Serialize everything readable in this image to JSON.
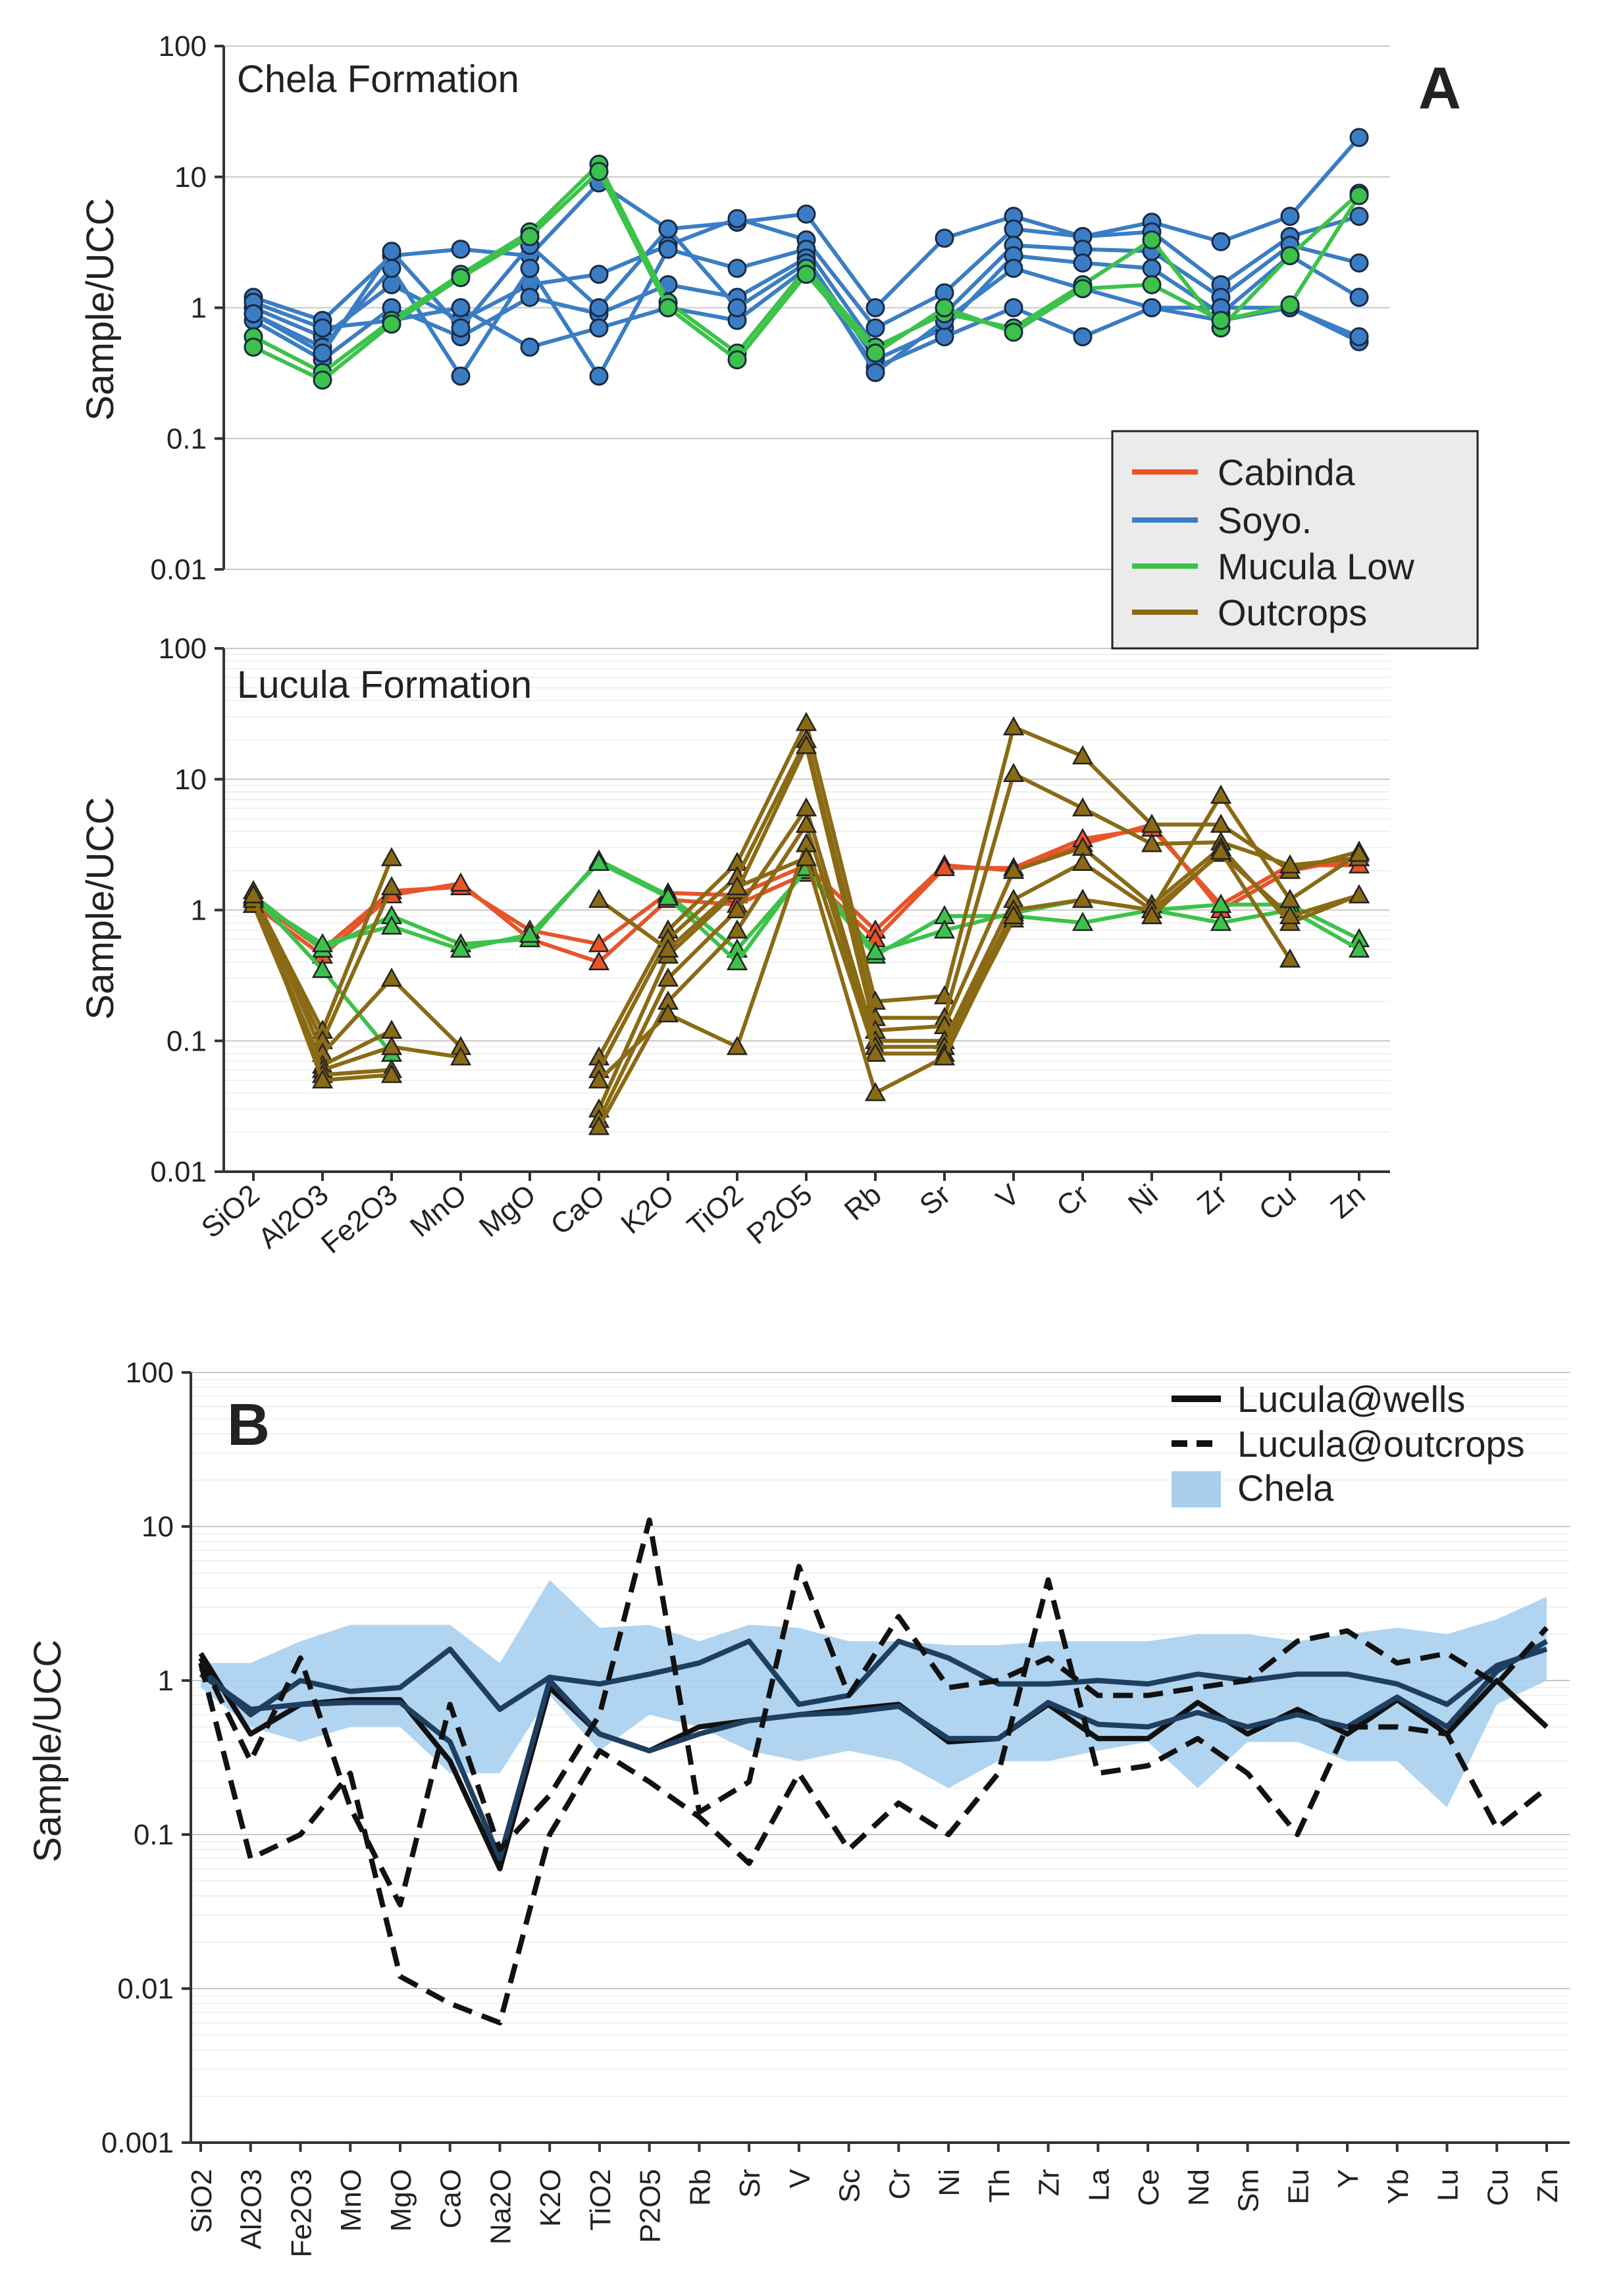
{
  "panel_a": {
    "letter": "A",
    "ylabel": "Sample/UCC",
    "ytick_labels": [
      "100",
      "10",
      "1",
      "0.1",
      "0.01"
    ],
    "categories": [
      "SiO2",
      "Al2O3",
      "Fe2O3",
      "MnO",
      "MgO",
      "CaO",
      "K2O",
      "TiO2",
      "P2O5",
      "Rb",
      "Sr",
      "V",
      "Cr",
      "Ni",
      "Zr",
      "Cu",
      "Zn"
    ],
    "legend": [
      {
        "name": "Cabinda",
        "color": "#e8542a"
      },
      {
        "name": "Soyo.",
        "color": "#3a7dc4"
      },
      {
        "name": "Mucula Low",
        "color": "#3cc24a"
      },
      {
        "name": "Outcrops",
        "color": "#8a6a14"
      }
    ]
  },
  "panel_b": {
    "letter": "B",
    "ylabel": "Sample/UCC",
    "ytick_labels": [
      "100",
      "10",
      "1",
      "0.1",
      "0.01",
      "0.001"
    ],
    "categories": [
      "SiO2",
      "Al2O3",
      "Fe2O3",
      "MnO",
      "MgO",
      "CaO",
      "Na2O",
      "K2O",
      "TiO2",
      "P2O5",
      "Rb",
      "Sr",
      "V",
      "Sc",
      "Cr",
      "Ni",
      "Th",
      "Zr",
      "La",
      "Ce",
      "Nd",
      "Sm",
      "Eu",
      "Y",
      "Yb",
      "Lu",
      "Cu",
      "Zn"
    ],
    "legend": [
      {
        "name": "Lucula@wells",
        "style": "solid"
      },
      {
        "name": "Lucula@outcrops",
        "style": "dashed"
      },
      {
        "name": "Chela",
        "style": "band"
      }
    ]
  },
  "chart_data": [
    {
      "type": "line",
      "title": "Chela Formation",
      "ylabel": "Sample/UCC",
      "yscale": "log",
      "ylim": [
        0.01,
        100
      ],
      "categories": [
        "SiO2",
        "Al2O3",
        "Fe2O3",
        "MnO",
        "MgO",
        "CaO",
        "K2O",
        "TiO2",
        "P2O5",
        "Rb",
        "Sr",
        "V",
        "Cr",
        "Ni",
        "Zr",
        "Cu",
        "Zn"
      ],
      "marker": "circle",
      "series": [
        {
          "name": "Soyo.",
          "color": "#3a7dc4",
          "values": [
            1.2,
            0.8,
            2.5,
            2.8,
            2.5,
            9,
            4,
            4.5,
            5.2,
            1.0,
            3.4,
            5,
            3.5,
            4.5,
            3.2,
            5,
            20
          ]
        },
        {
          "name": "Soyo.",
          "color": "#3a7dc4",
          "values": [
            1.0,
            0.6,
            1.5,
            0.8,
            1.5,
            1.8,
            3,
            4.8,
            3.3,
            0.7,
            1.3,
            4,
            3.5,
            3.8,
            1.5,
            3.5,
            5
          ]
        },
        {
          "name": "Soyo.",
          "color": "#3a7dc4",
          "values": [
            0.9,
            0.5,
            2.0,
            0.3,
            2.0,
            0.3,
            2.8,
            2.0,
            2.8,
            0.5,
            0.9,
            3,
            2.8,
            2.7,
            1.2,
            3.0,
            2.2
          ]
        },
        {
          "name": "Soyo.",
          "color": "#3a7dc4",
          "values": [
            0.8,
            0.4,
            1.0,
            0.6,
            1.2,
            0.9,
            1.5,
            1.2,
            2.4,
            0.4,
            0.7,
            2.5,
            2.2,
            2.0,
            0.9,
            2.5,
            1.2
          ]
        },
        {
          "name": "Soyo.",
          "color": "#3a7dc4",
          "values": [
            1.1,
            0.7,
            0.8,
            1.0,
            0.5,
            0.7,
            1.0,
            0.8,
            2.0,
            0.35,
            0.6,
            1.0,
            0.6,
            1.0,
            0.8,
            1.0,
            0.55
          ]
        },
        {
          "name": "Soyo.",
          "color": "#3a7dc4",
          "values": [
            0.9,
            0.45,
            2.7,
            0.7,
            3.0,
            1.0,
            4,
            1.0,
            2.2,
            0.32,
            0.8,
            2.0,
            1.4,
            1.0,
            1.0,
            1.0,
            0.6
          ]
        },
        {
          "name": "Mucula Low",
          "color": "#3cc24a",
          "values": [
            0.6,
            0.32,
            0.8,
            1.8,
            3.8,
            12.5,
            1.1,
            0.45,
            2.0,
            0.5,
            0.9,
            0.7,
            1.5,
            3.3,
            0.7,
            2.5,
            7.5
          ]
        },
        {
          "name": "Mucula Low",
          "color": "#3cc24a",
          "values": [
            0.5,
            0.28,
            0.75,
            1.7,
            3.5,
            11,
            1.0,
            0.4,
            1.8,
            0.45,
            1.0,
            0.65,
            1.4,
            1.5,
            0.8,
            1.05,
            7.2
          ]
        }
      ]
    },
    {
      "type": "line",
      "title": "Lucula Formation",
      "ylabel": "Sample/UCC",
      "yscale": "log",
      "ylim": [
        0.01,
        100
      ],
      "categories": [
        "SiO2",
        "Al2O3",
        "Fe2O3",
        "MnO",
        "MgO",
        "CaO",
        "K2O",
        "TiO2",
        "P2O5",
        "Rb",
        "Sr",
        "V",
        "Cr",
        "Ni",
        "Zr",
        "Cu",
        "Zn"
      ],
      "marker": "triangle",
      "series": [
        {
          "name": "Cabinda",
          "color": "#e8542a",
          "values": [
            1.2,
            0.5,
            1.4,
            1.5,
            0.7,
            0.55,
            1.35,
            1.3,
            2.2,
            0.7,
            2.2,
            2.0,
            3.2,
            4.5,
            1.0,
            2.0,
            2.5
          ]
        },
        {
          "name": "Cabinda",
          "color": "#e8542a",
          "values": [
            1.1,
            0.45,
            1.3,
            1.6,
            0.6,
            0.4,
            1.2,
            1.1,
            1.9,
            0.6,
            2.1,
            2.1,
            3.5,
            4.2,
            1.1,
            2.2,
            2.2
          ]
        },
        {
          "name": "Mucula Low",
          "color": "#3cc24a",
          "values": [
            1.3,
            0.5,
            0.9,
            0.55,
            0.6,
            2.4,
            1.3,
            0.5,
            2.0,
            0.45,
            0.9,
            0.9,
            0.8,
            1.0,
            1.1,
            1.1,
            0.6
          ]
        },
        {
          "name": "Mucula Low",
          "color": "#3cc24a",
          "values": [
            1.2,
            0.55,
            0.75,
            0.5,
            0.65,
            2.3,
            1.25,
            0.4,
            2.1,
            0.48,
            0.7,
            0.95,
            1.2,
            1.0,
            0.8,
            1.0,
            0.5
          ]
        },
        {
          "name": "Mucula Low",
          "color": "#3cc24a",
          "values": [
            1.3,
            0.35,
            0.08,
            null,
            null,
            null,
            null,
            null,
            null,
            null,
            null,
            null,
            null,
            null,
            null,
            null,
            null
          ]
        },
        {
          "name": "Outcrops",
          "color": "#8a6a14",
          "values": [
            1.3,
            0.12,
            2.5,
            null,
            null,
            0.075,
            0.7,
            2.3,
            27,
            0.2,
            0.22,
            25,
            15,
            4.5,
            4.5,
            2.0,
            2.8
          ]
        },
        {
          "name": "Outcrops",
          "color": "#8a6a14",
          "values": [
            1.25,
            0.1,
            1.5,
            null,
            null,
            0.06,
            0.6,
            1.8,
            20,
            0.15,
            0.15,
            11,
            6,
            3.2,
            3.3,
            2.2,
            2.5
          ]
        },
        {
          "name": "Outcrops",
          "color": "#8a6a14",
          "values": [
            1.4,
            0.08,
            0.3,
            0.09,
            null,
            0.03,
            0.45,
            1.4,
            18,
            0.12,
            0.13,
            2.0,
            3.0,
            1.1,
            3.0,
            0.8,
            1.3
          ]
        },
        {
          "name": "Outcrops",
          "color": "#8a6a14",
          "values": [
            1.2,
            0.065,
            0.12,
            null,
            null,
            0.025,
            0.3,
            1.0,
            6,
            0.1,
            0.1,
            1.2,
            2.3,
            1.0,
            2.7,
            0.9,
            1.3
          ]
        },
        {
          "name": "Outcrops",
          "color": "#8a6a14",
          "values": [
            1.1,
            0.06,
            0.09,
            0.075,
            null,
            0.022,
            0.2,
            0.7,
            4.5,
            0.09,
            0.09,
            1.0,
            1.2,
            1.0,
            7.5,
            1.2,
            2.7
          ]
        },
        {
          "name": "Outcrops",
          "color": "#8a6a14",
          "values": [
            1.2,
            0.055,
            0.06,
            null,
            null,
            0.05,
            0.16,
            0.09,
            3.2,
            0.08,
            0.08,
            0.85,
            null,
            0.9,
            2.8,
            0.42,
            null
          ]
        },
        {
          "name": "Outcrops",
          "color": "#8a6a14",
          "values": [
            1.3,
            0.05,
            0.055,
            null,
            null,
            1.2,
            0.5,
            1.5,
            2.5,
            0.04,
            0.075,
            0.9,
            null,
            null,
            null,
            null,
            null
          ]
        }
      ]
    },
    {
      "type": "line",
      "title": "",
      "ylabel": "Sample/UCC",
      "yscale": "log",
      "ylim": [
        0.001,
        100
      ],
      "categories": [
        "SiO2",
        "Al2O3",
        "Fe2O3",
        "MnO",
        "MgO",
        "CaO",
        "Na2O",
        "K2O",
        "TiO2",
        "P2O5",
        "Rb",
        "Sr",
        "V",
        "Sc",
        "Cr",
        "Ni",
        "Th",
        "Zr",
        "La",
        "Ce",
        "Nd",
        "Sm",
        "Eu",
        "Y",
        "Yb",
        "Lu",
        "Cu",
        "Zn"
      ],
      "band": {
        "name": "Chela",
        "color": "#a8d0ee",
        "upper": [
          1.3,
          1.3,
          1.8,
          2.3,
          2.3,
          2.3,
          1.3,
          4.5,
          2.2,
          2.3,
          1.8,
          2.3,
          2.2,
          1.8,
          1.8,
          1.7,
          1.7,
          1.8,
          1.8,
          1.8,
          2.0,
          2.0,
          1.8,
          2.0,
          2.2,
          2.0,
          2.5,
          3.5
        ],
        "lower": [
          0.9,
          0.5,
          0.4,
          0.5,
          0.5,
          0.25,
          0.25,
          0.8,
          0.35,
          0.6,
          0.5,
          0.35,
          0.3,
          0.35,
          0.3,
          0.2,
          0.3,
          0.3,
          0.35,
          0.4,
          0.2,
          0.4,
          0.4,
          0.3,
          0.3,
          0.15,
          0.7,
          1.0
        ]
      },
      "series": [
        {
          "name": "Lucula@wells",
          "style": "solid",
          "color": "#111111",
          "values": [
            1.5,
            0.45,
            0.7,
            0.75,
            0.75,
            0.3,
            0.06,
            0.9,
            0.45,
            0.35,
            0.5,
            0.55,
            0.6,
            0.65,
            0.7,
            0.4,
            0.42,
            0.7,
            0.42,
            0.42,
            0.72,
            0.45,
            0.65,
            0.45,
            0.75,
            0.45,
            1.0,
            0.5
          ]
        },
        {
          "name": "Lucula@wells",
          "style": "solid",
          "color": "#1f3f60",
          "values": [
            1.2,
            0.6,
            1.0,
            0.85,
            0.9,
            1.6,
            0.65,
            1.05,
            0.95,
            1.1,
            1.3,
            1.8,
            0.7,
            0.8,
            1.8,
            1.4,
            0.95,
            0.95,
            1.0,
            0.95,
            1.1,
            1.0,
            1.1,
            1.1,
            0.95,
            0.7,
            1.25,
            1.6
          ]
        },
        {
          "name": "Lucula@wells",
          "style": "solid",
          "color": "#1f3f60",
          "values": [
            1.1,
            0.65,
            0.7,
            0.72,
            0.72,
            0.4,
            0.07,
            1.0,
            0.45,
            0.35,
            0.45,
            0.55,
            0.6,
            0.62,
            0.68,
            0.42,
            0.42,
            0.72,
            0.52,
            0.5,
            0.62,
            0.5,
            0.6,
            0.5,
            0.78,
            0.5,
            1.15,
            1.8
          ]
        },
        {
          "name": "Lucula@outcrops",
          "style": "dashed",
          "color": "#111111",
          "values": [
            1.3,
            0.07,
            0.1,
            0.25,
            0.012,
            0.008,
            0.006,
            0.1,
            0.35,
            0.22,
            0.13,
            0.065,
            0.25,
            0.08,
            0.16,
            0.1,
            0.25,
            4.5,
            0.25,
            0.28,
            0.42,
            0.25,
            0.1,
            0.5,
            0.5,
            0.45,
            0.11,
            0.2
          ]
        },
        {
          "name": "Lucula@outcrops",
          "style": "dashed",
          "color": "#111111",
          "values": [
            1.4,
            0.3,
            1.4,
            0.15,
            0.035,
            0.7,
            0.08,
            0.18,
            0.6,
            11,
            0.14,
            0.22,
            5.5,
            0.8,
            2.6,
            0.9,
            1.0,
            1.4,
            0.8,
            0.8,
            0.9,
            1.0,
            1.8,
            2.1,
            1.3,
            1.5,
            0.95,
            2.2
          ]
        }
      ]
    }
  ]
}
